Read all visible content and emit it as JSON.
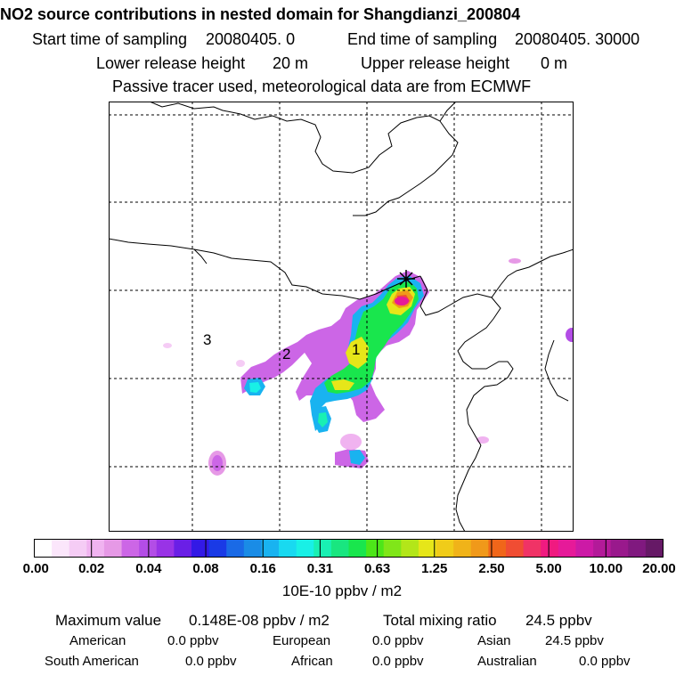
{
  "header": {
    "title": "NO2 source contributions in nested domain for Shangdianzi_200804",
    "start_label": "Start time of sampling",
    "start_value": "20080405.      0",
    "end_label": "End time of sampling",
    "end_value": "20080405. 30000",
    "lower_label": "Lower release height",
    "lower_value": "20 m",
    "upper_label": "Upper release height",
    "upper_value": "0 m",
    "note": "Passive tracer used, meteorological data are from ECMWF"
  },
  "map": {
    "receptor_labels": [
      "1",
      "2",
      "3"
    ],
    "receptor_marker": "asterisk-icon"
  },
  "colorbar": {
    "ticks": [
      "0.00",
      "0.02",
      "0.04",
      "0.08",
      "0.16",
      "0.31",
      "0.63",
      "1.25",
      "2.50",
      "5.00",
      "10.00",
      "20.00"
    ],
    "unit": "10E-10 ppbv / m2",
    "colors": [
      "#ffffff",
      "#fbe6fb",
      "#f5ccf5",
      "#f0b3f0",
      "#e699e6",
      "#cc66e6",
      "#b34de6",
      "#9933e6",
      "#6a1fe6",
      "#3319e6",
      "#1a3ae6",
      "#1a6ae6",
      "#1a8ce6",
      "#19b3f0",
      "#19d9f0",
      "#19f0e6",
      "#19f0b3",
      "#19e680",
      "#19e64d",
      "#4de619",
      "#80e619",
      "#b3e619",
      "#e6e619",
      "#f0cc19",
      "#f0b319",
      "#f0991a",
      "#f0661a",
      "#f04d33",
      "#f03366",
      "#f01a80",
      "#e61a99",
      "#cc1aa6",
      "#b31a99",
      "#99198c",
      "#80197f",
      "#661966"
    ]
  },
  "stats": {
    "max_label": "Maximum value",
    "max_value": "0.148E-08 ppbv / m2",
    "total_label": "Total mixing ratio",
    "total_value": "24.5 ppbv"
  },
  "regions": [
    {
      "name": "American",
      "value": "0.0 ppbv"
    },
    {
      "name": "European",
      "value": "0.0 ppbv"
    },
    {
      "name": "Asian",
      "value": "24.5 ppbv"
    },
    {
      "name": "South American",
      "value": "0.0 ppbv"
    },
    {
      "name": "African",
      "value": "0.0 ppbv"
    },
    {
      "name": "Australian",
      "value": "0.0 ppbv"
    }
  ]
}
